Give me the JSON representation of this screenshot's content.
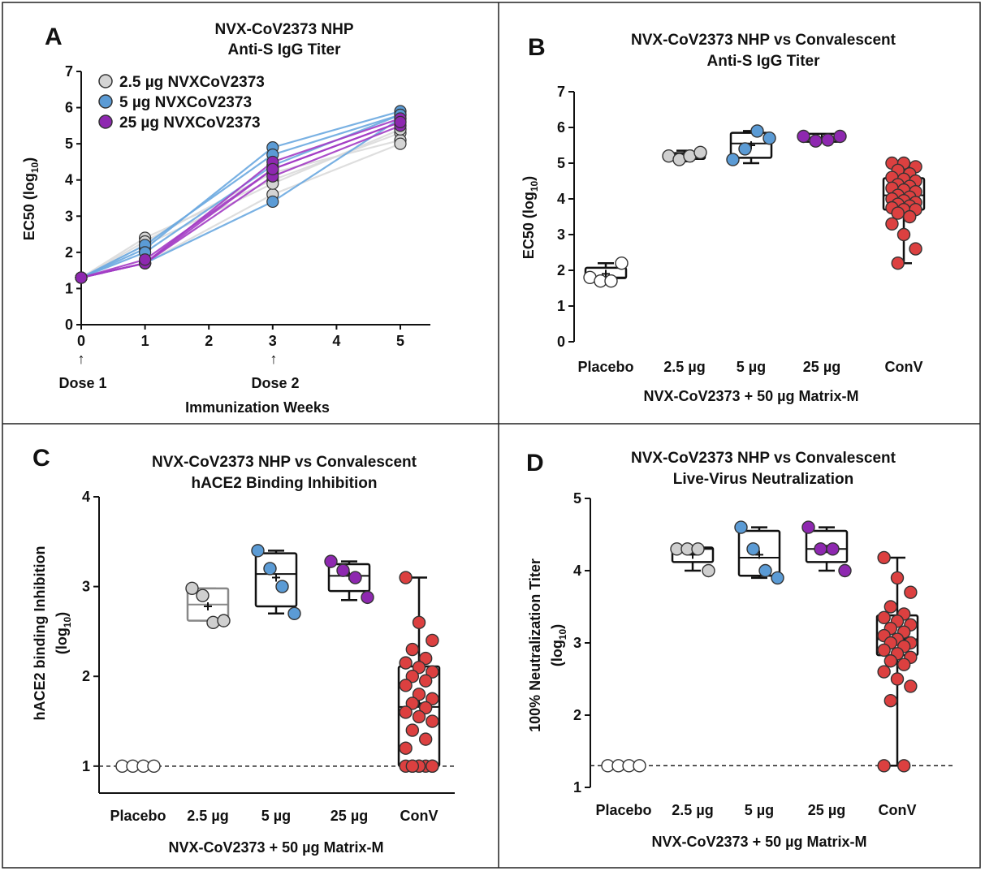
{
  "chart_data": [
    {
      "panel": "A",
      "type": "line",
      "title": [
        "NVX-CoV2373 NHP",
        "Anti-S IgG Titer"
      ],
      "xlabel": "Immunization Weeks",
      "ylabel": "EC50 (log10)",
      "xlim": [
        0,
        5.4
      ],
      "ylim": [
        0,
        7
      ],
      "xticks": [
        "0",
        "1",
        "2",
        "3",
        "4",
        "5"
      ],
      "yticks": [
        "0",
        "1",
        "2",
        "3",
        "4",
        "5",
        "6",
        "7"
      ],
      "annotations": [
        {
          "text": "Dose 1",
          "x": 0,
          "arrow": "↑"
        },
        {
          "text": "Dose 2",
          "x": 3,
          "arrow": "↑"
        }
      ],
      "x": [
        0,
        1,
        3,
        5
      ],
      "series": [
        {
          "name": "2.5 µg NVXCoV2373",
          "color": "#d4d4d4",
          "line": "#dadada",
          "animals": [
            [
              1.3,
              2.4,
              4.0,
              5.3
            ],
            [
              1.3,
              2.3,
              4.2,
              5.1
            ],
            [
              1.3,
              1.7,
              3.6,
              5.0
            ],
            [
              1.3,
              2.2,
              3.9,
              5.4
            ]
          ]
        },
        {
          "name": "5 µg NVXCoV2373",
          "color": "#5b9bd5",
          "line": "#6aa8e0",
          "animals": [
            [
              1.3,
              2.1,
              4.9,
              5.9
            ],
            [
              1.3,
              2.2,
              4.7,
              5.8
            ],
            [
              1.3,
              1.7,
              3.4,
              5.7
            ],
            [
              1.3,
              2.0,
              4.4,
              5.8
            ]
          ]
        },
        {
          "name": "25 µg NVXCoV2373",
          "color": "#8e28b0",
          "line": "#a33cc4",
          "animals": [
            [
              1.3,
              1.7,
              4.3,
              5.6
            ],
            [
              1.3,
              1.7,
              4.5,
              5.7
            ],
            [
              1.3,
              1.7,
              4.1,
              5.5
            ],
            [
              1.3,
              1.8,
              4.3,
              5.6
            ]
          ]
        }
      ]
    },
    {
      "panel": "B",
      "type": "box",
      "title": [
        "NVX-CoV2373 NHP vs Convalescent",
        "Anti-S IgG Titer"
      ],
      "ylabel": "EC50 (log10)",
      "xlabel": "NVX-CoV2373 + 50 µg Matrix-M",
      "ylim": [
        0,
        7
      ],
      "yticks": [
        "0",
        "1",
        "2",
        "3",
        "4",
        "5",
        "6",
        "7"
      ],
      "categories": [
        "Placebo",
        "2.5 µg",
        "5 µg",
        "25 µg",
        "ConV"
      ],
      "groups": [
        {
          "box": [
            1.7,
            1.78,
            1.8,
            2.07,
            2.2
          ],
          "mean": 1.9,
          "fill": "#ffffff",
          "stroke": "#111111",
          "points": [
            1.8,
            1.7,
            1.7,
            2.2
          ]
        },
        {
          "box": [
            5.05,
            5.12,
            5.2,
            5.28,
            5.35
          ],
          "mean": 5.2,
          "fill": "#cfcfcf",
          "stroke": "#111111",
          "points": [
            5.2,
            5.1,
            5.2,
            5.3
          ]
        },
        {
          "box": [
            5.0,
            5.15,
            5.55,
            5.85,
            5.9
          ],
          "mean": 5.5,
          "fill": "#5b9bd5",
          "stroke": "#111111",
          "points": [
            5.1,
            5.4,
            5.9,
            5.7
          ]
        },
        {
          "box": [
            5.6,
            5.6,
            5.7,
            5.82,
            5.8
          ],
          "mean": 5.7,
          "fill": "#8e28b0",
          "stroke": "#111111",
          "points": [
            5.75,
            5.62,
            5.65,
            5.75
          ]
        },
        {
          "box": [
            2.2,
            3.7,
            4.1,
            4.58,
            5.0
          ],
          "mean": 4.1,
          "fill": "#dc4040",
          "stroke": "#111111",
          "points": [
            5.0,
            5.0,
            4.9,
            4.8,
            4.7,
            4.6,
            4.55,
            4.5,
            4.4,
            4.35,
            4.3,
            4.25,
            4.2,
            4.1,
            4.05,
            4.0,
            3.95,
            3.9,
            3.85,
            3.8,
            3.75,
            3.7,
            3.7,
            3.6,
            3.5,
            3.3,
            3.0,
            2.6,
            2.2
          ]
        }
      ]
    },
    {
      "panel": "C",
      "type": "box",
      "title": [
        "NVX-CoV2373 NHP vs Convalescent",
        "hACE2 Binding Inhibition"
      ],
      "ylabel": "hACE2 binding Inhibition (log10)",
      "xlabel": "NVX-CoV2373 + 50 µg Matrix-M",
      "ylim": [
        0.7,
        4
      ],
      "yticks": [
        "1",
        "2",
        "3",
        "4"
      ],
      "dashed": 1,
      "categories": [
        "Placebo",
        "2.5 µg",
        "5 µg",
        "25 µg",
        "ConV"
      ],
      "groups": [
        {
          "box": null,
          "mean": null,
          "fill": "#ffffff",
          "stroke": "#111111",
          "points": [
            1,
            1,
            1,
            1
          ]
        },
        {
          "box": [
            2.62,
            2.62,
            2.8,
            2.98,
            2.98
          ],
          "mean": 2.78,
          "fill": "#cfcfcf",
          "stroke": "#888888",
          "points": [
            2.98,
            2.9,
            2.6,
            2.62
          ]
        },
        {
          "box": [
            2.7,
            2.78,
            3.14,
            3.37,
            3.4
          ],
          "mean": 3.1,
          "fill": "#5b9bd5",
          "stroke": "#111111",
          "points": [
            3.4,
            3.2,
            3.0,
            2.7
          ]
        },
        {
          "box": [
            2.85,
            2.95,
            3.12,
            3.25,
            3.28
          ],
          "mean": 3.12,
          "fill": "#8e28b0",
          "stroke": "#111111",
          "points": [
            3.28,
            3.18,
            3.1,
            2.88
          ]
        },
        {
          "box": [
            1.0,
            1.0,
            1.66,
            2.11,
            3.1
          ],
          "mean": 1.7,
          "fill": "#dc4040",
          "stroke": "#111111",
          "points": [
            3.1,
            2.6,
            2.4,
            2.3,
            2.2,
            2.15,
            2.1,
            2.05,
            2.0,
            1.95,
            1.9,
            1.8,
            1.75,
            1.7,
            1.65,
            1.6,
            1.55,
            1.5,
            1.4,
            1.3,
            1.2,
            1.0,
            1.0,
            1.0,
            1.0,
            1.0,
            1.0,
            1.0,
            1.0
          ]
        }
      ]
    },
    {
      "panel": "D",
      "type": "box",
      "title": [
        "NVX-CoV2373 NHP vs Convalescent",
        "Live-Virus Neutralization"
      ],
      "ylabel": "100% Neutralization Titer (log10)",
      "xlabel": "NVX-CoV2373 + 50 µg Matrix-M",
      "ylim": [
        1,
        5
      ],
      "yticks": [
        "1",
        "2",
        "3",
        "4",
        "5"
      ],
      "dashed": 1.3,
      "categories": [
        "Placebo",
        "2.5 µg",
        "5 µg",
        "25 µg",
        "ConV"
      ],
      "groups": [
        {
          "box": null,
          "mean": null,
          "fill": "#ffffff",
          "stroke": "#111111",
          "points": [
            1.3,
            1.3,
            1.3,
            1.3
          ]
        },
        {
          "box": [
            4.0,
            4.12,
            4.3,
            4.32,
            4.32
          ],
          "mean": 4.22,
          "fill": "#cfcfcf",
          "stroke": "#111111",
          "points": [
            4.3,
            4.3,
            4.3,
            4.0
          ]
        },
        {
          "box": [
            3.9,
            3.93,
            4.18,
            4.55,
            4.6
          ],
          "mean": 4.22,
          "fill": "#5b9bd5",
          "stroke": "#111111",
          "points": [
            4.6,
            4.3,
            4.0,
            3.9
          ]
        },
        {
          "box": [
            4.0,
            4.12,
            4.3,
            4.55,
            4.6
          ],
          "mean": 4.3,
          "fill": "#8e28b0",
          "stroke": "#111111",
          "points": [
            4.6,
            4.3,
            4.3,
            4.0
          ]
        },
        {
          "box": [
            1.3,
            2.83,
            3.05,
            3.38,
            4.18
          ],
          "mean": 3.05,
          "fill": "#dc4040",
          "stroke": "#111111",
          "points": [
            4.18,
            3.9,
            3.7,
            3.5,
            3.4,
            3.35,
            3.3,
            3.25,
            3.2,
            3.15,
            3.1,
            3.05,
            3.0,
            3.0,
            2.95,
            2.9,
            2.85,
            2.8,
            2.75,
            2.7,
            2.6,
            2.5,
            2.4,
            2.2,
            1.3,
            1.3
          ]
        }
      ]
    }
  ]
}
